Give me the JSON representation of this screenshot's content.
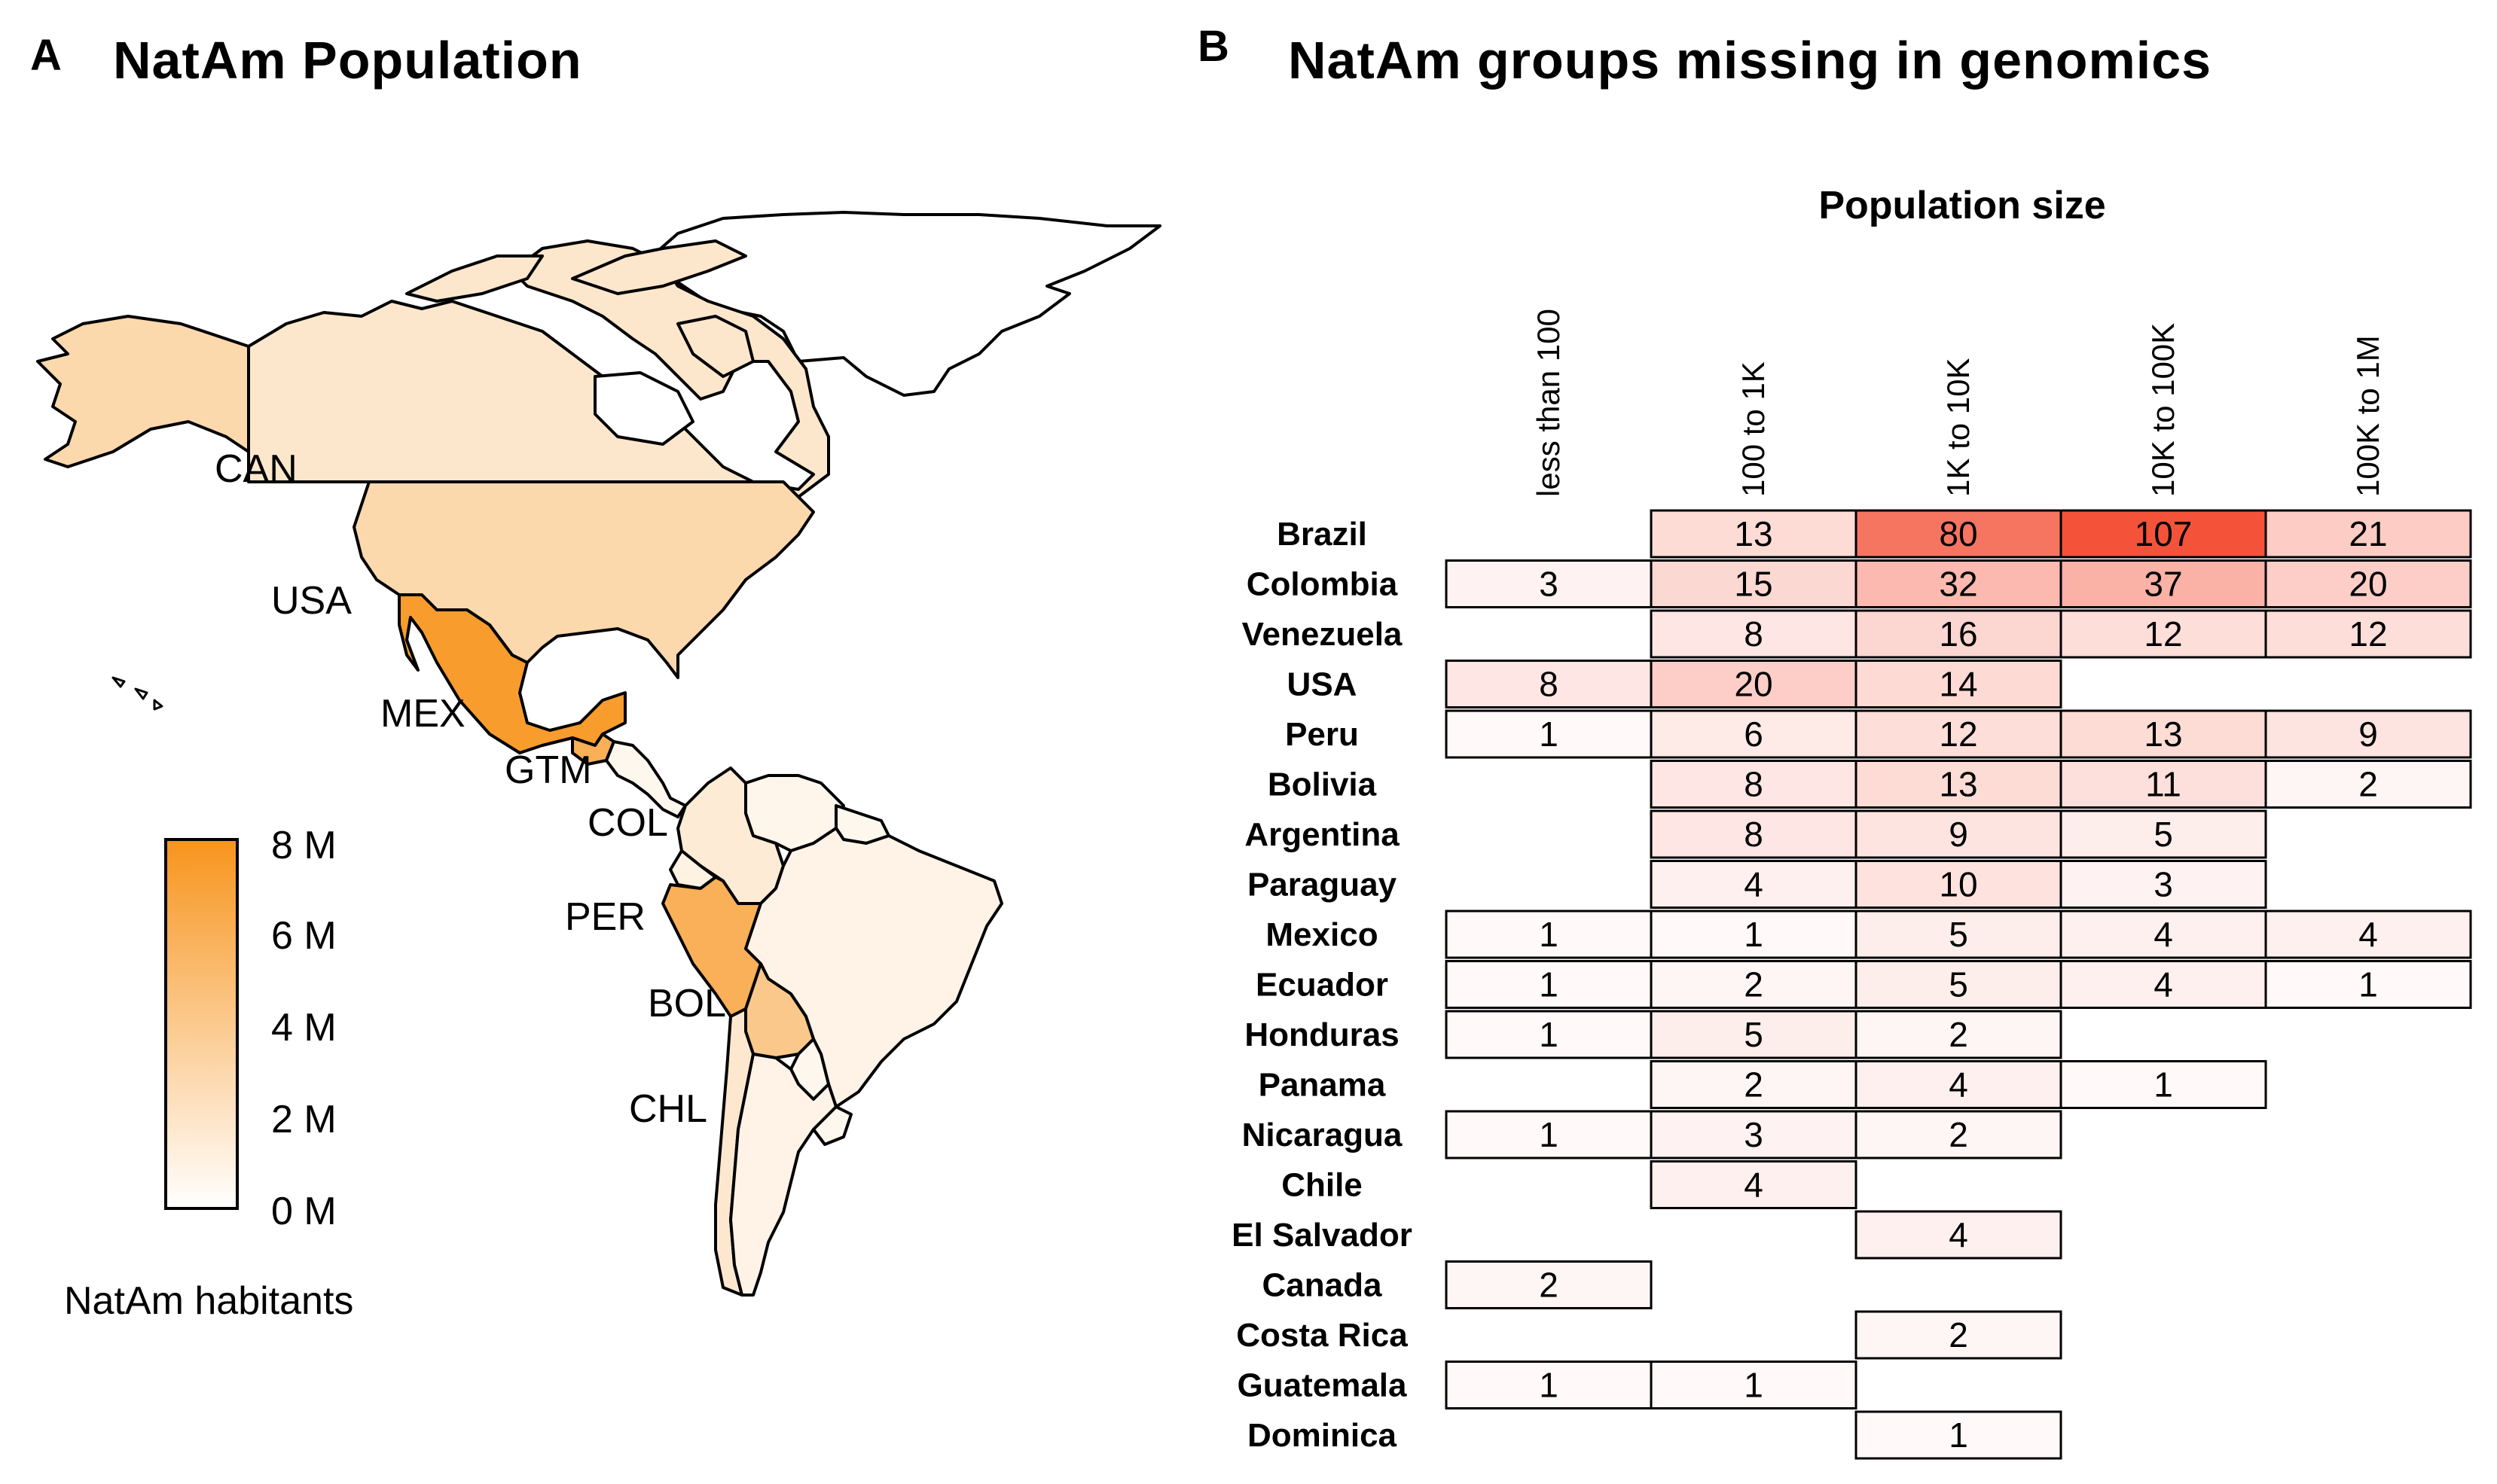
{
  "panel_a": {
    "letter": "A",
    "title": "NatAm Population",
    "country_labels": [
      "CAN",
      "USA",
      "MEX",
      "GTM",
      "COL",
      "PER",
      "BOL",
      "CHL"
    ],
    "legend": {
      "title": "NatAm habitants",
      "ticks": [
        "8 M",
        "6 M",
        "4 M",
        "2 M",
        "0 M"
      ],
      "low_color": "#ffffff",
      "high_color": "#f7941d"
    },
    "country_fill_millions": {
      "CAN": 1.8,
      "USA": 2.9,
      "MEX": 7.4,
      "GTM": 6.0,
      "COL": 1.5,
      "PER": 5.9,
      "BOL": 4.1,
      "CHL": 1.7,
      "ARG": 0.9,
      "BRA": 0.9,
      "VEN": 0.7,
      "ECU": 1.0
    }
  },
  "panel_b": {
    "letter": "B",
    "title": "NatAm groups missing in genomics"
  },
  "chart_data": {
    "type": "heatmap",
    "title": "Population size",
    "columns": [
      "less than 100",
      "100 to 1K",
      "1K to 10K",
      "10K to 100K",
      "100K to 1M"
    ],
    "rows": [
      "Brazil",
      "Colombia",
      "Venezuela",
      "USA",
      "Peru",
      "Bolivia",
      "Argentina",
      "Paraguay",
      "Mexico",
      "Ecuador",
      "Honduras",
      "Panama",
      "Nicaragua",
      "Chile",
      "El Salvador",
      "Canada",
      "Costa Rica",
      "Guatemala",
      "Dominica"
    ],
    "values": [
      [
        null,
        13,
        80,
        107,
        21
      ],
      [
        3,
        15,
        32,
        37,
        20
      ],
      [
        null,
        8,
        16,
        12,
        12
      ],
      [
        8,
        20,
        14,
        null,
        null
      ],
      [
        1,
        6,
        12,
        13,
        9
      ],
      [
        null,
        8,
        13,
        11,
        2
      ],
      [
        null,
        8,
        9,
        5,
        null
      ],
      [
        null,
        4,
        10,
        3,
        null
      ],
      [
        1,
        1,
        5,
        4,
        4
      ],
      [
        1,
        2,
        5,
        4,
        1
      ],
      [
        1,
        5,
        2,
        null,
        null
      ],
      [
        null,
        2,
        4,
        1,
        null
      ],
      [
        1,
        3,
        2,
        null,
        null
      ],
      [
        null,
        4,
        null,
        null,
        null
      ],
      [
        null,
        null,
        4,
        null,
        null
      ],
      [
        2,
        null,
        null,
        null,
        null
      ],
      [
        null,
        null,
        2,
        null,
        null
      ],
      [
        1,
        1,
        null,
        null,
        null
      ],
      [
        null,
        null,
        1,
        null,
        null
      ]
    ],
    "color_low": "#ffffff",
    "color_high": "#f4533a",
    "max_value": 107
  }
}
